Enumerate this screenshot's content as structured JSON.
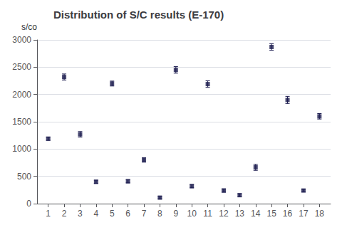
{
  "chart_data": {
    "type": "scatter",
    "title": "Distribution of S/C results (E-170)",
    "ylabel": "s/co",
    "x": [
      1,
      2,
      3,
      4,
      5,
      6,
      7,
      8,
      9,
      10,
      11,
      12,
      13,
      14,
      15,
      16,
      17,
      18
    ],
    "values": [
      1190,
      2320,
      1270,
      400,
      2200,
      410,
      800,
      110,
      2450,
      320,
      2190,
      240,
      155,
      665,
      2870,
      1900,
      240,
      1600
    ],
    "errors": [
      30,
      55,
      50,
      30,
      45,
      30,
      40,
      20,
      60,
      30,
      60,
      30,
      25,
      55,
      60,
      65,
      20,
      50
    ],
    "color": "#1a1a4e",
    "marker": "square",
    "xlim": [
      0.3,
      18.7
    ],
    "xticks": [
      1,
      2,
      3,
      4,
      5,
      6,
      7,
      8,
      9,
      10,
      11,
      12,
      13,
      14,
      15,
      16,
      17,
      18
    ],
    "ylim": [
      0,
      3000
    ],
    "yticks": [
      0,
      500,
      1000,
      1500,
      2000,
      2500,
      3000
    ],
    "grid": true
  }
}
